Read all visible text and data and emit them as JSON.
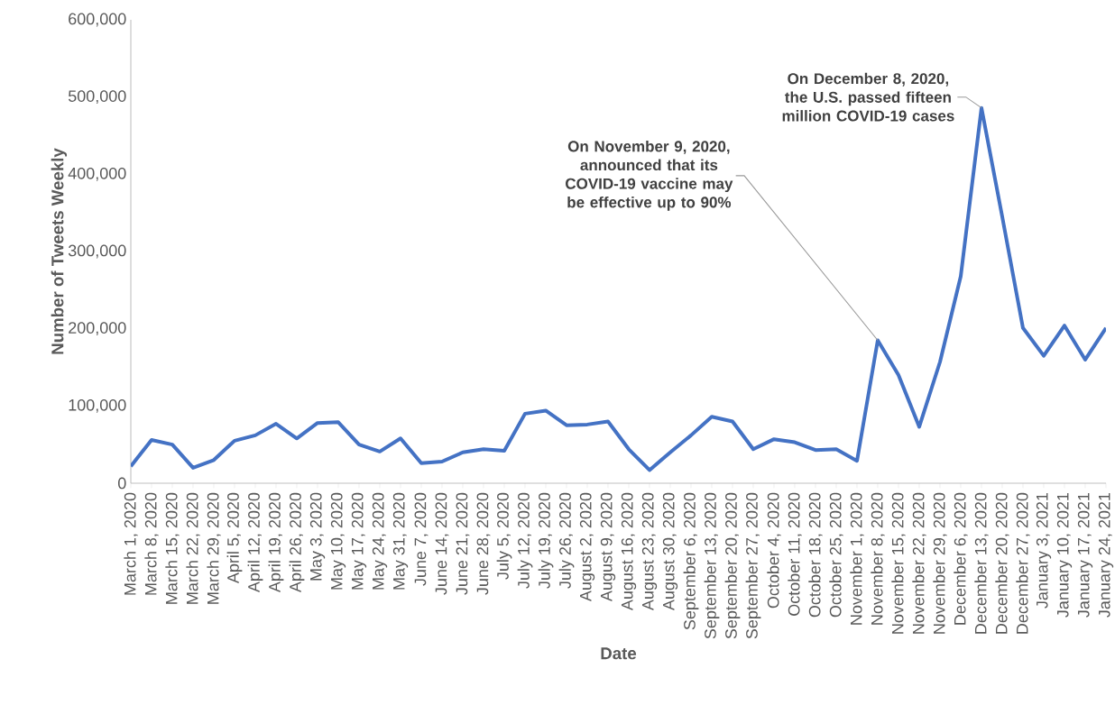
{
  "chart_data": {
    "type": "line",
    "xlabel": "Date",
    "ylabel": "Number of Tweets Weekly",
    "categories": [
      "March 1, 2020",
      "March 8, 2020",
      "March 15, 2020",
      "March 22, 2020",
      "March 29, 2020",
      "April 5, 2020",
      "April 12, 2020",
      "April 19, 2020",
      "April 26, 2020",
      "May 3, 2020",
      "May 10, 2020",
      "May 17, 2020",
      "May 24, 2020",
      "May 31, 2020",
      "June 7, 2020",
      "June 14, 2020",
      "June 21, 2020",
      "June 28, 2020",
      "July 5, 2020",
      "July 12, 2020",
      "July 19, 2020",
      "July 26, 2020",
      "August 2, 2020",
      "August 9, 2020",
      "August 16, 2020",
      "August 23, 2020",
      "August 30, 2020",
      "September 6, 2020",
      "September 13, 2020",
      "September 20, 2020",
      "September 27, 2020",
      "October 4, 2020",
      "October 11, 2020",
      "October 18, 2020",
      "October 25, 2020",
      "November 1, 2020",
      "November 8, 2020",
      "November 15, 2020",
      "November 22, 2020",
      "November 29, 2020",
      "December 6, 2020",
      "December 13, 2020",
      "December 20, 2020",
      "December 27, 2020",
      "January 3, 2021",
      "January 10, 2021",
      "January 17, 2021",
      "January 24, 2021"
    ],
    "series": [
      {
        "color": "#4472c4",
        "values": [
          22000,
          56000,
          50000,
          20000,
          30000,
          55000,
          62000,
          77000,
          58000,
          78000,
          79000,
          50000,
          41000,
          58000,
          26000,
          28000,
          40000,
          44000,
          42000,
          90000,
          94000,
          75000,
          76000,
          80000,
          44000,
          17000,
          40000,
          62000,
          86000,
          80000,
          44000,
          57000,
          53000,
          43000,
          44000,
          29000,
          185000,
          140000,
          73000,
          157000,
          268000,
          486000,
          345000,
          201000,
          165000,
          204000,
          160000,
          201000
        ]
      }
    ],
    "ylim": [
      0,
      600000
    ],
    "yticks": [
      0,
      {
        "value": 100000,
        "label": "100,000"
      },
      {
        "value": 200000,
        "label": "200,000"
      },
      {
        "value": 300000,
        "label": "300,000"
      },
      {
        "value": 400000,
        "label": "400,000"
      },
      {
        "value": 500000,
        "label": "500,000"
      },
      {
        "value": 600000,
        "label": "600,000"
      }
    ],
    "annotations": [
      {
        "text": "On November 9, 2020, announced that its COVID-19 vaccine may be effective up to 90%",
        "x": "November 8, 2020",
        "y": 185000
      },
      {
        "text": "On December 8, 2020, the U.S. passed fifteen million COVID-19 cases",
        "x": "December 13, 2020",
        "y": 486000
      }
    ]
  }
}
